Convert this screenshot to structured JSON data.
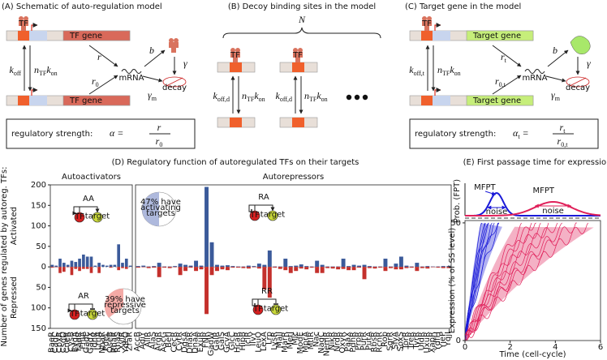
{
  "panels": {
    "A": {
      "title": "(A) Schematic of auto-regulation model",
      "tf": "TF",
      "gene_top": "TF gene",
      "gene_bottom": "TF gene",
      "koff": [
        "k",
        "off"
      ],
      "nkon": [
        "n",
        "TF",
        "k",
        "on"
      ],
      "r": [
        "r"
      ],
      "r0": [
        "r",
        "0"
      ],
      "mrna": "mRNA",
      "b": [
        "b"
      ],
      "gamma": [
        "γ"
      ],
      "gamma_m": [
        "γ",
        "m"
      ],
      "decay": "decay",
      "strength": "regulatory strength:",
      "lhs": [
        "α ="
      ],
      "num": [
        "r"
      ],
      "den": [
        "r",
        "0"
      ]
    },
    "B": {
      "title": "(B) Decoy binding sites in the model",
      "N": "N",
      "tf1": "TF",
      "tf2": "TF",
      "koff1": [
        "k",
        "off,d"
      ],
      "nkon1": [
        "n",
        "TF",
        "k",
        "on"
      ],
      "koff2": [
        "k",
        "off,d"
      ],
      "nkon2": [
        "n",
        "TF",
        "k",
        "on"
      ]
    },
    "C": {
      "title": "(C) Target gene in the model",
      "tf": "TF",
      "gene_top": "Target gene",
      "gene_bottom": "Target gene",
      "koff": [
        "k",
        "off,t"
      ],
      "nkon": [
        "n",
        "TF",
        "k",
        "on"
      ],
      "r": [
        "r",
        "t"
      ],
      "r0": [
        "r",
        "0,t"
      ],
      "mrna": "mRNA",
      "b": [
        "b"
      ],
      "gamma": [
        "γ"
      ],
      "gamma_m": [
        "γ",
        "m"
      ],
      "decay": "decay",
      "strength": "regulatory strength:",
      "lhs": [
        "α",
        "t",
        " ="
      ],
      "num": [
        "r",
        "t"
      ],
      "den": [
        "r",
        "0,t"
      ]
    },
    "D": {
      "title": "(D) Regulatory function of autoregulated TFs on their targets",
      "motifs": [
        {
          "label": "AA",
          "tf": "TF",
          "target": "target"
        },
        {
          "label": "AR",
          "tf": "TF",
          "target": "target"
        },
        {
          "label": "RA",
          "tf": "TF",
          "target": "target"
        },
        {
          "label": "RR",
          "tf": "TF",
          "target": "target"
        }
      ],
      "pie_a": [
        "47% have",
        "activating",
        "targets"
      ],
      "pie_r": [
        "39% have",
        "repressive",
        "targets"
      ]
    }
  },
  "chart_data": [
    {
      "type": "bar",
      "title": "Autoactivators",
      "y_label": "Number of genes regulated by autoreg. TFs:",
      "categories": [
        "BaeR",
        "CadC",
        "CpxR",
        "CsgD",
        "CueR",
        "CysB",
        "EvgA",
        "FadR",
        "FhlA",
        "GadE",
        "GadX",
        "IdnR",
        "LrhA",
        "NhaR",
        "PdeL",
        "QseB",
        "RhaR",
        "RhaS",
        "XylR",
        "YdeO",
        "ZraR"
      ],
      "series": [
        {
          "name": "Activated",
          "color": "#3b5a9a",
          "values": [
            5,
            3,
            20,
            10,
            5,
            15,
            12,
            20,
            30,
            25,
            25,
            3,
            10,
            5,
            3,
            5,
            5,
            55,
            10,
            20,
            3
          ]
        },
        {
          "name": "Repressed",
          "color": "#c4302c",
          "values": [
            -2,
            -1,
            -15,
            -12,
            -1,
            -20,
            -5,
            -10,
            -5,
            -5,
            -15,
            0,
            -15,
            0,
            0,
            -2,
            0,
            -8,
            -3,
            -5,
            0
          ]
        }
      ],
      "ylim": [
        -150,
        200
      ],
      "yticks": [
        {
          "value": -150,
          "label": "150"
        },
        {
          "value": -100,
          "label": "100"
        },
        {
          "value": -50,
          "label": "50"
        },
        0,
        50,
        100,
        150,
        200
      ]
    },
    {
      "type": "bar",
      "title": "Autorepressors",
      "categories": [
        "AccB",
        "AdiY",
        "AllR",
        "AlaS",
        "ArgR",
        "AscG",
        "BetI",
        "CecR",
        "CytR",
        "DgsA",
        "DhaR",
        "DnaA",
        "ExuR",
        "FNR",
        "GadW",
        "GalR",
        "GalS",
        "GcvA",
        "GlcC",
        "HcaR",
        "HipB",
        "IclR",
        "IlvY",
        "LeuO",
        "LexA",
        "Lrp",
        "LysR",
        "MalI",
        "MarR",
        "MetJ",
        "Mlc",
        "ModE",
        "MprA",
        "MtlR",
        "Nac",
        "NagC",
        "NemR",
        "NikR",
        "NrdR",
        "OxyR",
        "PaaX",
        "PdhR",
        "PrpR",
        "PurR",
        "PutA",
        "RbsR",
        "RcnR",
        "Rob",
        "SgrR",
        "SlyA",
        "SoxS",
        "TorR",
        "TreR",
        "TyrR",
        "UidR",
        "UxuR",
        "XapR",
        "YdfH",
        "YieP",
        "YqjI"
      ],
      "series": [
        {
          "name": "Activated",
          "color": "#3b5a9a",
          "values": [
            2,
            3,
            1,
            2,
            10,
            1,
            1,
            2,
            8,
            5,
            3,
            15,
            3,
            195,
            60,
            5,
            3,
            4,
            2,
            1,
            1,
            3,
            2,
            8,
            5,
            40,
            1,
            1,
            20,
            2,
            3,
            6,
            2,
            1,
            15,
            5,
            1,
            1,
            1,
            20,
            2,
            5,
            3,
            5,
            2,
            1,
            1,
            20,
            1,
            8,
            25,
            3,
            1,
            10,
            1,
            2,
            1,
            1,
            2,
            2
          ]
        },
        {
          "name": "Repressed",
          "color": "#c4302c",
          "values": [
            -2,
            -1,
            -3,
            -2,
            -25,
            -2,
            -3,
            -1,
            -20,
            -10,
            -2,
            -10,
            -6,
            -115,
            -20,
            -10,
            -6,
            -8,
            -2,
            -2,
            -3,
            -4,
            -1,
            -4,
            -55,
            -75,
            -2,
            -5,
            -8,
            -15,
            -10,
            -4,
            -6,
            -2,
            -15,
            -15,
            -3,
            -4,
            -6,
            -5,
            -8,
            -8,
            -2,
            -30,
            -3,
            -4,
            -2,
            -10,
            -3,
            -6,
            -6,
            -3,
            -2,
            -10,
            -3,
            -4,
            -1,
            -2,
            -3,
            -3
          ]
        }
      ],
      "ylim": [
        -150,
        200
      ]
    },
    {
      "type": "fpt",
      "title": "(E) First passage time for expression",
      "x_label": "Time (cell-cycle)",
      "y_label": "Expression (% of SS level)",
      "y_label_top": "Prob. (FPT)",
      "xlim": [
        0,
        6
      ],
      "xticks": [
        0,
        2,
        4,
        6
      ],
      "ylim": [
        0,
        51
      ],
      "yticks": [
        0,
        50
      ],
      "colors": [
        "#1a1ad8",
        "#e0205a"
      ],
      "annotations": [
        "MFPT",
        "noise",
        "MFPT",
        "noise"
      ]
    }
  ]
}
